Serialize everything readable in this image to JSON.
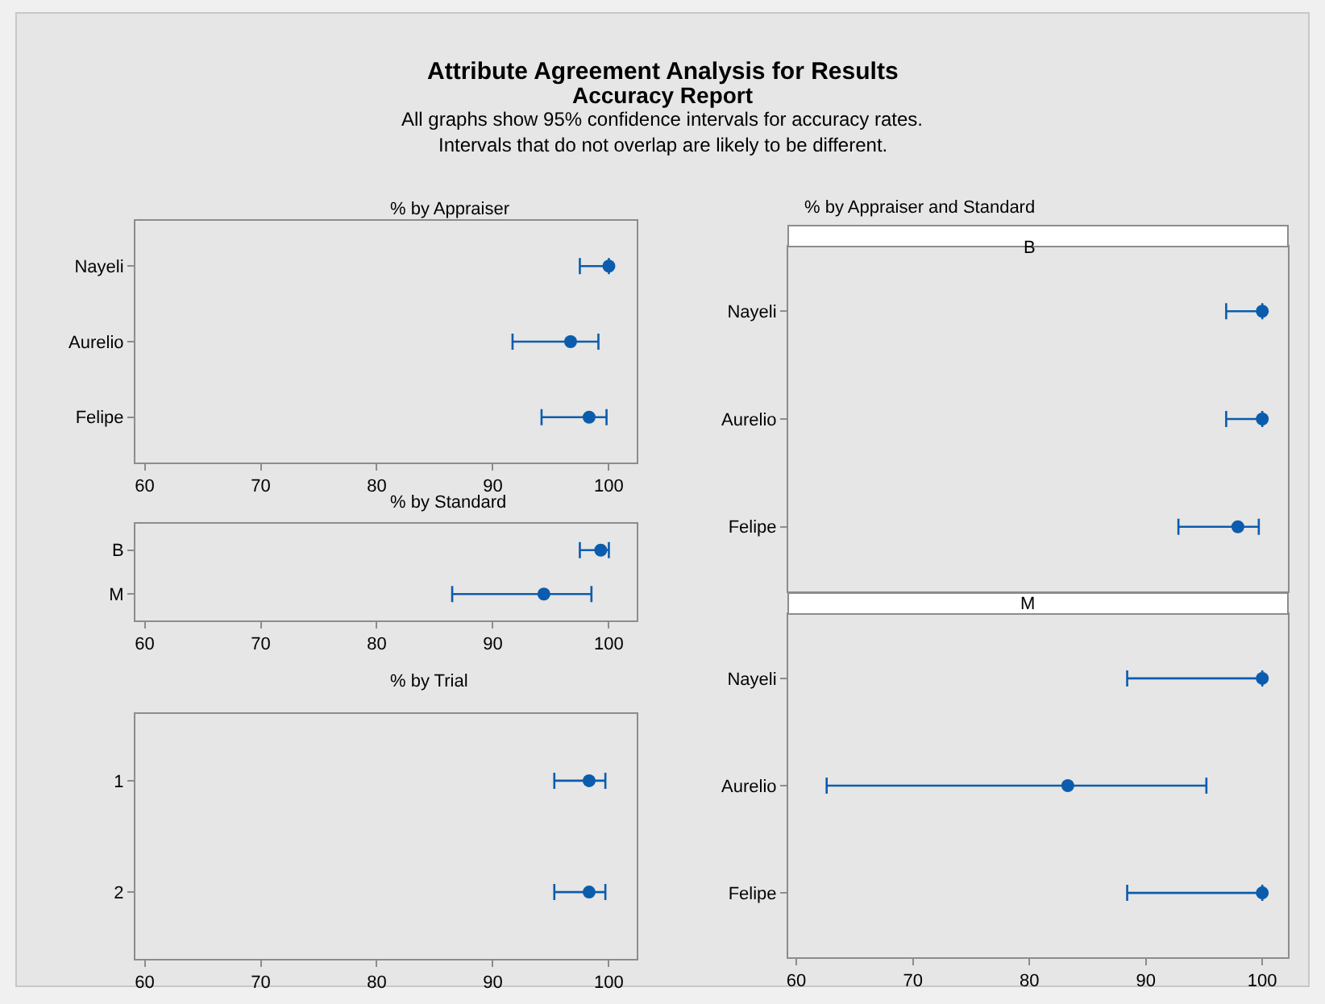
{
  "chart_data": [
    {
      "type": "other",
      "title": "Attribute Agreement Analysis for Results",
      "subtitle": "Accuracy Report",
      "annotations": [
        "All graphs show 95% confidence intervals for accuracy rates.",
        "Intervals that do not overlap are likely to be different."
      ]
    },
    {
      "type": "scatter",
      "orientation": "horizontal",
      "title": "% by Appraiser",
      "categories": [
        "Nayeli",
        "Aurelio",
        "Felipe"
      ],
      "series": [
        {
          "color": "#0b5cad",
          "values": [
            100,
            96.7,
            98.3
          ],
          "errors": [
            [
              97.5,
              100
            ],
            [
              91.7,
              99.1
            ],
            [
              94.2,
              99.8
            ]
          ]
        }
      ],
      "xlim": [
        59.2,
        102.4
      ],
      "xticks": [
        60,
        70,
        80,
        90,
        100
      ],
      "marker": "circle"
    },
    {
      "type": "scatter",
      "orientation": "horizontal",
      "title": "% by Standard",
      "categories": [
        "B",
        "M"
      ],
      "series": [
        {
          "color": "#0b5cad",
          "values": [
            99.3,
            94.4
          ],
          "errors": [
            [
              97.5,
              100
            ],
            [
              86.5,
              98.5
            ]
          ]
        }
      ],
      "xlim": [
        59.2,
        102.4
      ],
      "xticks": [
        60,
        70,
        80,
        90,
        100
      ],
      "marker": "circle"
    },
    {
      "type": "scatter",
      "orientation": "horizontal",
      "title": "% by Trial",
      "categories": [
        "1",
        "2"
      ],
      "series": [
        {
          "color": "#0b5cad",
          "values": [
            98.3,
            98.3
          ],
          "errors": [
            [
              95.3,
              99.7
            ],
            [
              95.3,
              99.7
            ]
          ]
        }
      ],
      "xlim": [
        59.2,
        102.4
      ],
      "xticks": [
        60,
        70,
        80,
        90,
        100
      ],
      "marker": "circle"
    },
    {
      "type": "scatter",
      "orientation": "horizontal",
      "title": "% by Appraiser and Standard",
      "subtitle": "B",
      "categories": [
        "Nayeli",
        "Aurelio",
        "Felipe"
      ],
      "series": [
        {
          "color": "#0b5cad",
          "values": [
            100,
            100,
            97.9
          ],
          "errors": [
            [
              96.9,
              100
            ],
            [
              96.9,
              100
            ],
            [
              92.8,
              99.7
            ]
          ]
        }
      ],
      "xlim": [
        59.3,
        102.2
      ],
      "xticks": [
        60,
        70,
        80,
        90,
        100
      ],
      "tick_labels": "y",
      "marker": "circle"
    },
    {
      "type": "scatter",
      "orientation": "horizontal",
      "subtitle": "M",
      "categories": [
        "Nayeli",
        "Aurelio",
        "Felipe"
      ],
      "series": [
        {
          "color": "#0b5cad",
          "values": [
            100,
            83.3,
            100
          ],
          "errors": [
            [
              88.4,
              100
            ],
            [
              62.6,
              95.2
            ],
            [
              88.4,
              100
            ]
          ]
        }
      ],
      "xlim": [
        59.3,
        102.2
      ],
      "xticks": [
        60,
        70,
        80,
        90,
        100
      ],
      "marker": "circle"
    }
  ]
}
